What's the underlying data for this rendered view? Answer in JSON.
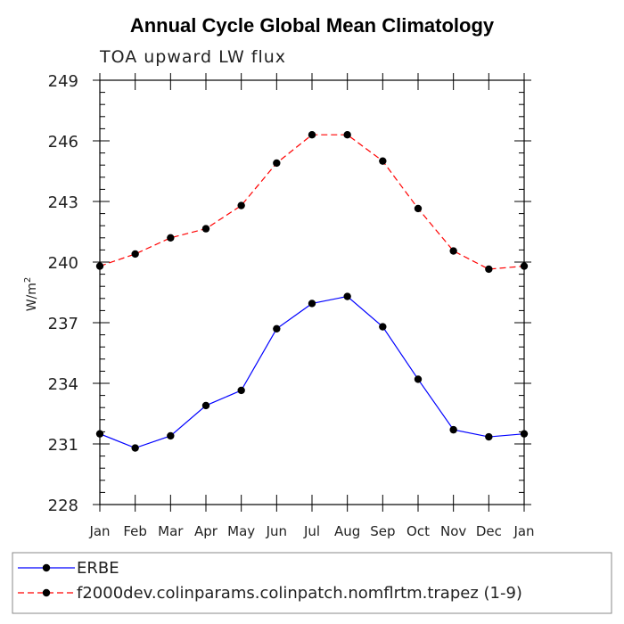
{
  "chart_data": {
    "type": "line",
    "title": "Annual Cycle Global Mean Climatology",
    "subtitle": "TOA upward LW flux",
    "xlabel": "",
    "ylabel": "W/m",
    "ylabel_superscript": "2",
    "ylim": [
      228,
      249
    ],
    "yticks": [
      "228",
      "231",
      "234",
      "237",
      "240",
      "243",
      "246",
      "249"
    ],
    "categories": [
      "Jan",
      "Feb",
      "Mar",
      "Apr",
      "May",
      "Jun",
      "Jul",
      "Aug",
      "Sep",
      "Oct",
      "Nov",
      "Dec",
      "Jan"
    ],
    "series": [
      {
        "name": "ERBE",
        "color": "#0000ff",
        "dash": "solid",
        "marker": "filled-circle",
        "values": [
          231.5,
          230.8,
          231.4,
          232.9,
          233.65,
          236.7,
          237.95,
          238.3,
          236.8,
          234.2,
          231.7,
          231.35,
          231.5
        ]
      },
      {
        "name": "f2000dev.colinparams.colinpatch.nomflrtm.trapez (1-9)",
        "color": "#ff0000",
        "dash": "dashed",
        "marker": "filled-circle",
        "values": [
          239.8,
          240.4,
          241.2,
          241.65,
          242.8,
          244.9,
          246.3,
          246.3,
          245.0,
          242.65,
          240.55,
          239.65,
          239.8
        ]
      }
    ],
    "legend_position": "bottom"
  }
}
